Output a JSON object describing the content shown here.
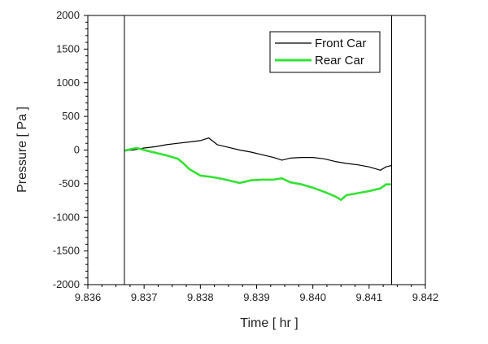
{
  "chart_data": {
    "type": "line",
    "title": "",
    "xlabel": "Time [ hr ]",
    "ylabel": "Pressure [ Pa ]",
    "xlim": [
      9.836,
      9.842
    ],
    "ylim": [
      -2000,
      2000
    ],
    "xticks": [
      "9.836",
      "9.837",
      "9.838",
      "9.839",
      "9.840",
      "9.841",
      "9.842"
    ],
    "yticks": [
      "2000",
      "1500",
      "1000",
      "500",
      "0",
      "-500",
      "-1000",
      "-1500",
      "-2000"
    ],
    "legend_position": "top-right",
    "grid": false,
    "vertical_markers": [
      9.83665,
      9.8414
    ],
    "series": [
      {
        "name": "Front Car",
        "color": "#000000",
        "x": [
          9.83665,
          9.8368,
          9.837,
          9.8372,
          9.8374,
          9.8376,
          9.8378,
          9.838,
          9.83815,
          9.8383,
          9.8385,
          9.8387,
          9.8389,
          9.8391,
          9.8393,
          9.83945,
          9.8396,
          9.8398,
          9.84,
          9.8402,
          9.8404,
          9.8406,
          9.8408,
          9.841,
          9.8412,
          9.8413,
          9.8414
        ],
        "y": [
          -10,
          0,
          30,
          50,
          80,
          100,
          120,
          140,
          180,
          80,
          40,
          0,
          -30,
          -70,
          -110,
          -150,
          -120,
          -110,
          -110,
          -130,
          -170,
          -200,
          -220,
          -250,
          -300,
          -250,
          -230
        ]
      },
      {
        "name": "Rear Car",
        "color": "#33e233",
        "x": [
          9.83665,
          9.8368,
          9.83687,
          9.837,
          9.8372,
          9.8374,
          9.8376,
          9.8377,
          9.8378,
          9.838,
          9.8382,
          9.8384,
          9.8386,
          9.8387,
          9.8389,
          9.8391,
          9.8393,
          9.83945,
          9.8396,
          9.8398,
          9.84,
          9.8402,
          9.8404,
          9.8405,
          9.8406,
          9.8408,
          9.841,
          9.8412,
          9.8413,
          9.8414
        ],
        "y": [
          -10,
          20,
          30,
          0,
          -40,
          -80,
          -130,
          -200,
          -280,
          -380,
          -400,
          -430,
          -470,
          -490,
          -450,
          -440,
          -440,
          -420,
          -480,
          -510,
          -560,
          -620,
          -690,
          -740,
          -670,
          -640,
          -610,
          -570,
          -510,
          -510
        ]
      }
    ]
  }
}
